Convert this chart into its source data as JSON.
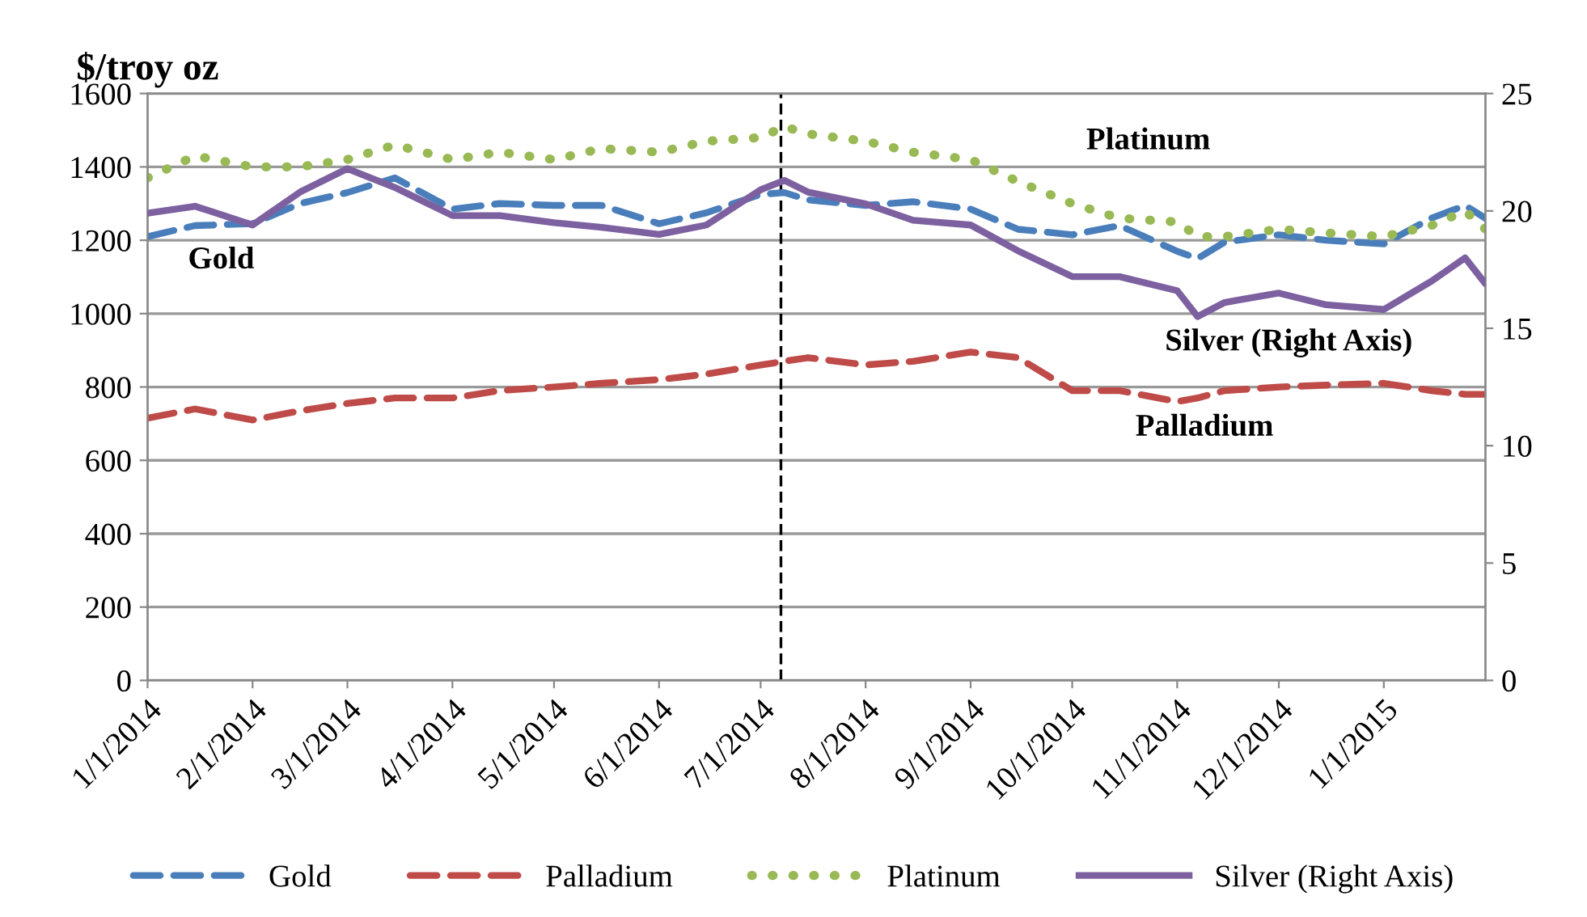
{
  "chart_data": {
    "type": "line",
    "ylabel": "$/troy oz",
    "x": [
      "2014-01-01",
      "2014-01-15",
      "2014-02-01",
      "2014-02-15",
      "2014-03-01",
      "2014-03-15",
      "2014-04-01",
      "2014-04-15",
      "2014-05-01",
      "2014-05-15",
      "2014-06-01",
      "2014-06-15",
      "2014-07-01",
      "2014-07-08",
      "2014-07-15",
      "2014-08-01",
      "2014-08-15",
      "2014-09-01",
      "2014-09-15",
      "2014-10-01",
      "2014-10-15",
      "2014-11-01",
      "2014-11-07",
      "2014-11-15",
      "2014-12-01",
      "2014-12-15",
      "2015-01-01",
      "2015-01-15",
      "2015-01-25",
      "2015-01-31"
    ],
    "series": [
      {
        "name": "Gold",
        "color": "#4a7ebb",
        "line_style": "dashed",
        "values": [
          1210,
          1240,
          1245,
          1300,
          1330,
          1370,
          1285,
          1300,
          1295,
          1295,
          1245,
          1275,
          1325,
          1330,
          1310,
          1295,
          1305,
          1285,
          1230,
          1215,
          1240,
          1170,
          1150,
          1195,
          1215,
          1200,
          1190,
          1260,
          1295,
          1260
        ]
      },
      {
        "name": "Palladium",
        "color": "#be4b48",
        "line_style": "dashed",
        "values": [
          715,
          740,
          710,
          735,
          755,
          770,
          770,
          790,
          800,
          810,
          820,
          835,
          860,
          870,
          880,
          860,
          870,
          895,
          880,
          790,
          790,
          760,
          770,
          790,
          800,
          805,
          810,
          790,
          780,
          780
        ]
      },
      {
        "name": "Platinum",
        "color": "#98b954",
        "line_style": "dotted",
        "values": [
          1370,
          1430,
          1400,
          1400,
          1420,
          1460,
          1420,
          1440,
          1420,
          1450,
          1440,
          1470,
          1480,
          1510,
          1490,
          1470,
          1440,
          1420,
          1360,
          1300,
          1260,
          1250,
          1210,
          1210,
          1230,
          1220,
          1210,
          1240,
          1280,
          1230
        ]
      },
      {
        "name": "Silver (Right Axis)",
        "color": "#7d60a0",
        "line_style": "solid",
        "axis": "y2",
        "values": [
          19.9,
          20.2,
          19.4,
          20.8,
          21.8,
          21.0,
          19.8,
          19.8,
          19.5,
          19.3,
          19.0,
          19.4,
          20.9,
          21.3,
          20.8,
          20.3,
          19.6,
          19.4,
          18.3,
          17.2,
          17.2,
          16.6,
          15.5,
          16.1,
          16.5,
          16.0,
          15.8,
          17.0,
          18.0,
          16.9
        ]
      }
    ],
    "xlim": [
      "2014-01-01",
      "2015-01-31"
    ],
    "xticks": [
      {
        "value": "2014-01-01",
        "label": "1/1/2014"
      },
      {
        "value": "2014-02-01",
        "label": "2/1/2014"
      },
      {
        "value": "2014-03-01",
        "label": "3/1/2014"
      },
      {
        "value": "2014-04-01",
        "label": "4/1/2014"
      },
      {
        "value": "2014-05-01",
        "label": "5/1/2014"
      },
      {
        "value": "2014-06-01",
        "label": "6/1/2014"
      },
      {
        "value": "2014-07-01",
        "label": "7/1/2014"
      },
      {
        "value": "2014-08-01",
        "label": "8/1/2014"
      },
      {
        "value": "2014-09-01",
        "label": "9/1/2014"
      },
      {
        "value": "2014-10-01",
        "label": "10/1/2014"
      },
      {
        "value": "2014-11-01",
        "label": "11/1/2014"
      },
      {
        "value": "2014-12-01",
        "label": "12/1/2014"
      },
      {
        "value": "2015-01-01",
        "label": "1/1/2015"
      }
    ],
    "ylim": [
      0,
      1600
    ],
    "yticks": [
      0,
      200,
      400,
      600,
      800,
      1000,
      1200,
      1400,
      1600
    ],
    "y2lim": [
      0,
      25
    ],
    "y2ticks": [
      0,
      5,
      10,
      15,
      20,
      25
    ],
    "ref_lines": [
      {
        "axis": "x",
        "value": "2014-07-07",
        "color": "#000000",
        "line_style": "dashed"
      }
    ],
    "annotations": [
      "Gold",
      "Platinum",
      "Silver (Right Axis)",
      "Palladium"
    ],
    "grid": "y",
    "legend": "bottom"
  }
}
